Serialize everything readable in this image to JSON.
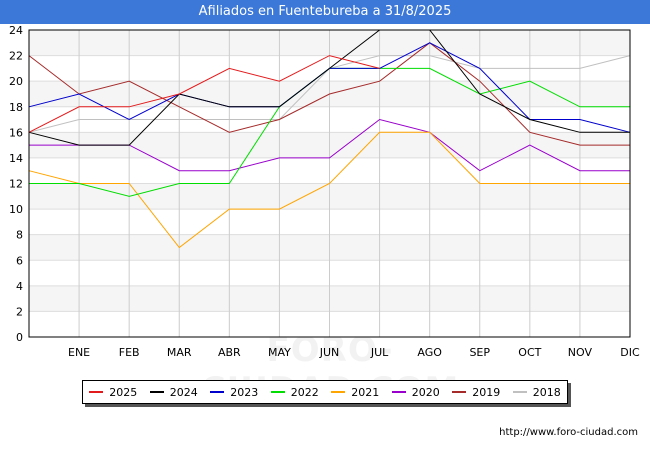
{
  "chart_data": {
    "type": "line",
    "title": "Afiliados en Fuentebureba a 31/8/2025",
    "xlabel": "",
    "ylabel": "",
    "categories": [
      "",
      "ENE",
      "FEB",
      "MAR",
      "ABR",
      "MAY",
      "JUN",
      "JUL",
      "AGO",
      "SEP",
      "OCT",
      "NOV",
      "DIC"
    ],
    "y_ticks": [
      0,
      2,
      4,
      6,
      8,
      10,
      12,
      14,
      16,
      18,
      20,
      22,
      24
    ],
    "ylim": [
      0,
      24
    ],
    "grid": true,
    "legend_position": "bottom",
    "series": [
      {
        "name": "2025",
        "color": "#e31a1c",
        "values": [
          16,
          18,
          18,
          19,
          21,
          20,
          22,
          21,
          null,
          null,
          null,
          null,
          null
        ]
      },
      {
        "name": "2024",
        "color": "#000000",
        "values": [
          16,
          15,
          15,
          19,
          18,
          18,
          21,
          24,
          24,
          19,
          17,
          16,
          16
        ]
      },
      {
        "name": "2023",
        "color": "#0000cc",
        "values": [
          18,
          19,
          17,
          19,
          18,
          18,
          21,
          21,
          23,
          21,
          17,
          17,
          16
        ]
      },
      {
        "name": "2022",
        "color": "#00dd00",
        "values": [
          12,
          12,
          11,
          12,
          12,
          18,
          21,
          21,
          21,
          19,
          20,
          18,
          18
        ]
      },
      {
        "name": "2021",
        "color": "#ffa500",
        "values": [
          13,
          12,
          12,
          7,
          10,
          10,
          12,
          16,
          16,
          12,
          12,
          12,
          12
        ]
      },
      {
        "name": "2020",
        "color": "#9900cc",
        "values": [
          15,
          15,
          15,
          13,
          13,
          14,
          14,
          17,
          16,
          13,
          15,
          13,
          13
        ]
      },
      {
        "name": "2019",
        "color": "#a52a2a",
        "values": [
          22,
          19,
          20,
          18,
          16,
          17,
          19,
          20,
          23,
          20,
          16,
          15,
          15
        ]
      },
      {
        "name": "2018",
        "color": "#c0c0c0",
        "values": [
          16,
          17,
          17,
          17,
          17,
          17,
          21,
          22,
          22,
          21,
          21,
          21,
          22
        ]
      }
    ]
  },
  "footer": {
    "url": "http://www.foro-ciudad.com",
    "watermark": "FORO-CIUDAD.COM"
  }
}
